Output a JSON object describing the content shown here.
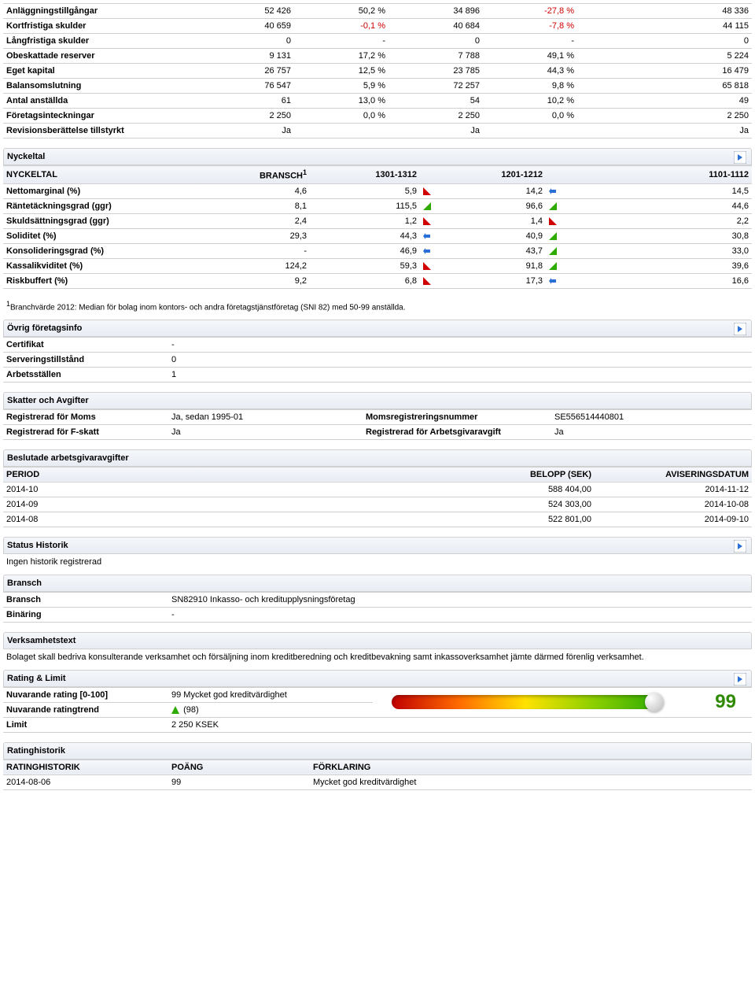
{
  "balance": {
    "rows": [
      {
        "label": "Anläggningstillgångar",
        "v1": "52 426",
        "p1": "50,2 %",
        "v2": "34 896",
        "p2": "-27,8 %",
        "p2red": true,
        "v3": "48 336"
      },
      {
        "label": "Kortfristiga skulder",
        "v1": "40 659",
        "p1": "-0,1 %",
        "p1red": true,
        "v2": "40 684",
        "p2": "-7,8 %",
        "p2red": true,
        "v3": "44 115"
      },
      {
        "label": "Långfristiga skulder",
        "v1": "0",
        "p1": "-",
        "v2": "0",
        "p2": "-",
        "v3": "0"
      },
      {
        "label": "Obeskattade reserver",
        "v1": "9 131",
        "p1": "17,2 %",
        "v2": "7 788",
        "p2": "49,1 %",
        "v3": "5 224"
      },
      {
        "label": "Eget kapital",
        "v1": "26 757",
        "p1": "12,5 %",
        "v2": "23 785",
        "p2": "44,3 %",
        "v3": "16 479"
      },
      {
        "label": "Balansomslutning",
        "v1": "76 547",
        "p1": "5,9 %",
        "v2": "72 257",
        "p2": "9,8 %",
        "v3": "65 818"
      },
      {
        "label": "Antal anställda",
        "v1": "61",
        "p1": "13,0 %",
        "v2": "54",
        "p2": "10,2 %",
        "v3": "49"
      },
      {
        "label": "Företagsinteckningar",
        "v1": "2 250",
        "p1": "0,0 %",
        "v2": "2 250",
        "p2": "0,0 %",
        "v3": "2 250"
      },
      {
        "label": "Revisionsberättelse tillstyrkt",
        "v1": "Ja",
        "p1": "",
        "v2": "Ja",
        "p2": "",
        "v3": "Ja"
      }
    ]
  },
  "nyckeltal": {
    "title": "Nyckeltal",
    "h1": "NYCKELTAL",
    "h2": "BRANSCH",
    "h2sup": "1",
    "h3": "1301-1312",
    "h4": "1201-1212",
    "h5": "1101-1112",
    "rows": [
      {
        "label": "Nettomarginal (%)",
        "b": "4,6",
        "c1": "5,9",
        "i1": "dr",
        "c2": "14,2",
        "i2": "lt",
        "c3": "14,5"
      },
      {
        "label": "Räntetäckningsgrad (ggr)",
        "b": "8,1",
        "c1": "115,5",
        "i1": "ug",
        "c2": "96,6",
        "i2": "ug",
        "c3": "44,6"
      },
      {
        "label": "Skuldsättningsgrad (ggr)",
        "b": "2,4",
        "c1": "1,2",
        "i1": "dr",
        "c2": "1,4",
        "i2": "dr",
        "c3": "2,2"
      },
      {
        "label": "Soliditet (%)",
        "b": "29,3",
        "c1": "44,3",
        "i1": "lt",
        "c2": "40,9",
        "i2": "ug",
        "c3": "30,8"
      },
      {
        "label": "Konsolideringsgrad (%)",
        "b": "-",
        "c1": "46,9",
        "i1": "lt",
        "c2": "43,7",
        "i2": "ug",
        "c3": "33,0"
      },
      {
        "label": "Kassalikviditet (%)",
        "b": "124,2",
        "c1": "59,3",
        "i1": "dr",
        "c2": "91,8",
        "i2": "ug",
        "c3": "39,6"
      },
      {
        "label": "Riskbuffert (%)",
        "b": "9,2",
        "c1": "6,8",
        "i1": "dr",
        "c2": "17,3",
        "i2": "lt",
        "c3": "16,6"
      }
    ],
    "footnote": "Branchvärde 2012: Median för bolag inom kontors- och andra företagstjänstföretag (SNI 82) med 50-99 anställda.",
    "footsup": "1"
  },
  "ovrig": {
    "title": "Övrig företagsinfo",
    "rows": [
      {
        "k": "Certifikat",
        "v": "-"
      },
      {
        "k": "Serveringstillstånd",
        "v": "0"
      },
      {
        "k": "Arbetsställen",
        "v": "1"
      }
    ]
  },
  "skatter": {
    "title": "Skatter och Avgifter",
    "r1k1": "Registrerad för Moms",
    "r1v1": "Ja, sedan 1995-01",
    "r1k2": "Momsregistreringsnummer",
    "r1v2": "SE556514440801",
    "r2k1": "Registrerad för F-skatt",
    "r2v1": "Ja",
    "r2k2": "Registrerad för Arbetsgivaravgift",
    "r2v2": "Ja"
  },
  "avgifter": {
    "title": "Beslutade arbetsgivaravgifter",
    "h1": "PERIOD",
    "h2": "BELOPP (SEK)",
    "h3": "AVISERINGSDATUM",
    "rows": [
      {
        "p": "2014-10",
        "b": "588 404,00",
        "a": "2014-11-12"
      },
      {
        "p": "2014-09",
        "b": "524 303,00",
        "a": "2014-10-08"
      },
      {
        "p": "2014-08",
        "b": "522 801,00",
        "a": "2014-09-10"
      }
    ]
  },
  "historik": {
    "title": "Status Historik",
    "text": "Ingen historik registrerad"
  },
  "bransch": {
    "title": "Bransch",
    "r1k": "Bransch",
    "r1v": "SN82910 Inkasso- och kreditupplysningsföretag",
    "r2k": "Binäring",
    "r2v": "-"
  },
  "verksamhet": {
    "title": "Verksamhetstext",
    "text": "Bolaget skall bedriva konsulterande verksamhet och försäljning inom kreditberedning och kreditbevakning samt inkassoverksamhet jämte därmed förenlig verksamhet."
  },
  "rating": {
    "title": "Rating & Limit",
    "r1k": "Nuvarande rating [0-100]",
    "r1v": "99 Mycket god kreditvärdighet",
    "big": "99",
    "r2k": "Nuvarande ratingtrend",
    "r2v": "(98)",
    "r3k": "Limit",
    "r3v": "2 250 KSEK"
  },
  "ratinghist": {
    "title": "Ratinghistorik",
    "h1": "RATINGHISTORIK",
    "h2": "POÄNG",
    "h3": "FÖRKLARING",
    "d": "2014-08-06",
    "p": "99",
    "f": "Mycket god kreditvärdighet"
  }
}
